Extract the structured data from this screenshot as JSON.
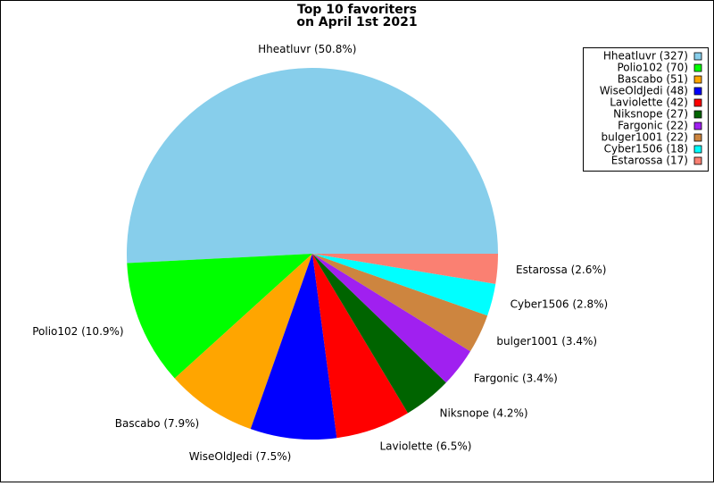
{
  "chart_data": {
    "type": "pie",
    "title": [
      "Top 10 favoriters",
      "on April 1st 2021"
    ],
    "categories": [
      "Hheatluvr (327)",
      "Polio102 (70)",
      "Bascabo (51)",
      "WiseOldJedi (48)",
      "Laviolette (42)",
      "Niksnope (27)",
      "Fargonic (22)",
      "bulger1001 (22)",
      "Cyber1506 (18)",
      "Estarossa (17)"
    ],
    "values": [
      50.8,
      10.9,
      7.9,
      7.5,
      6.5,
      4.2,
      3.4,
      3.4,
      2.8,
      2.6
    ],
    "value_labels": [
      "Hheatluvr (50.8%)",
      "Polio102 (10.9%)",
      "Bascabo (7.9%)",
      "WiseOldJedi (7.5%)",
      "Laviolette (6.5%)",
      "Niksnope (4.2%)",
      "Fargonic (3.4%)",
      "bulger1001 (3.4%)",
      "Cyber1506 (2.8%)",
      "Estarossa (2.6%)"
    ],
    "colors": [
      "#87ceeb",
      "#00ff00",
      "#ffa500",
      "#0000ff",
      "#ff0000",
      "#006400",
      "#a020f0",
      "#cd853f",
      "#00ffff",
      "#fa8072"
    ],
    "legend": "upper right"
  }
}
